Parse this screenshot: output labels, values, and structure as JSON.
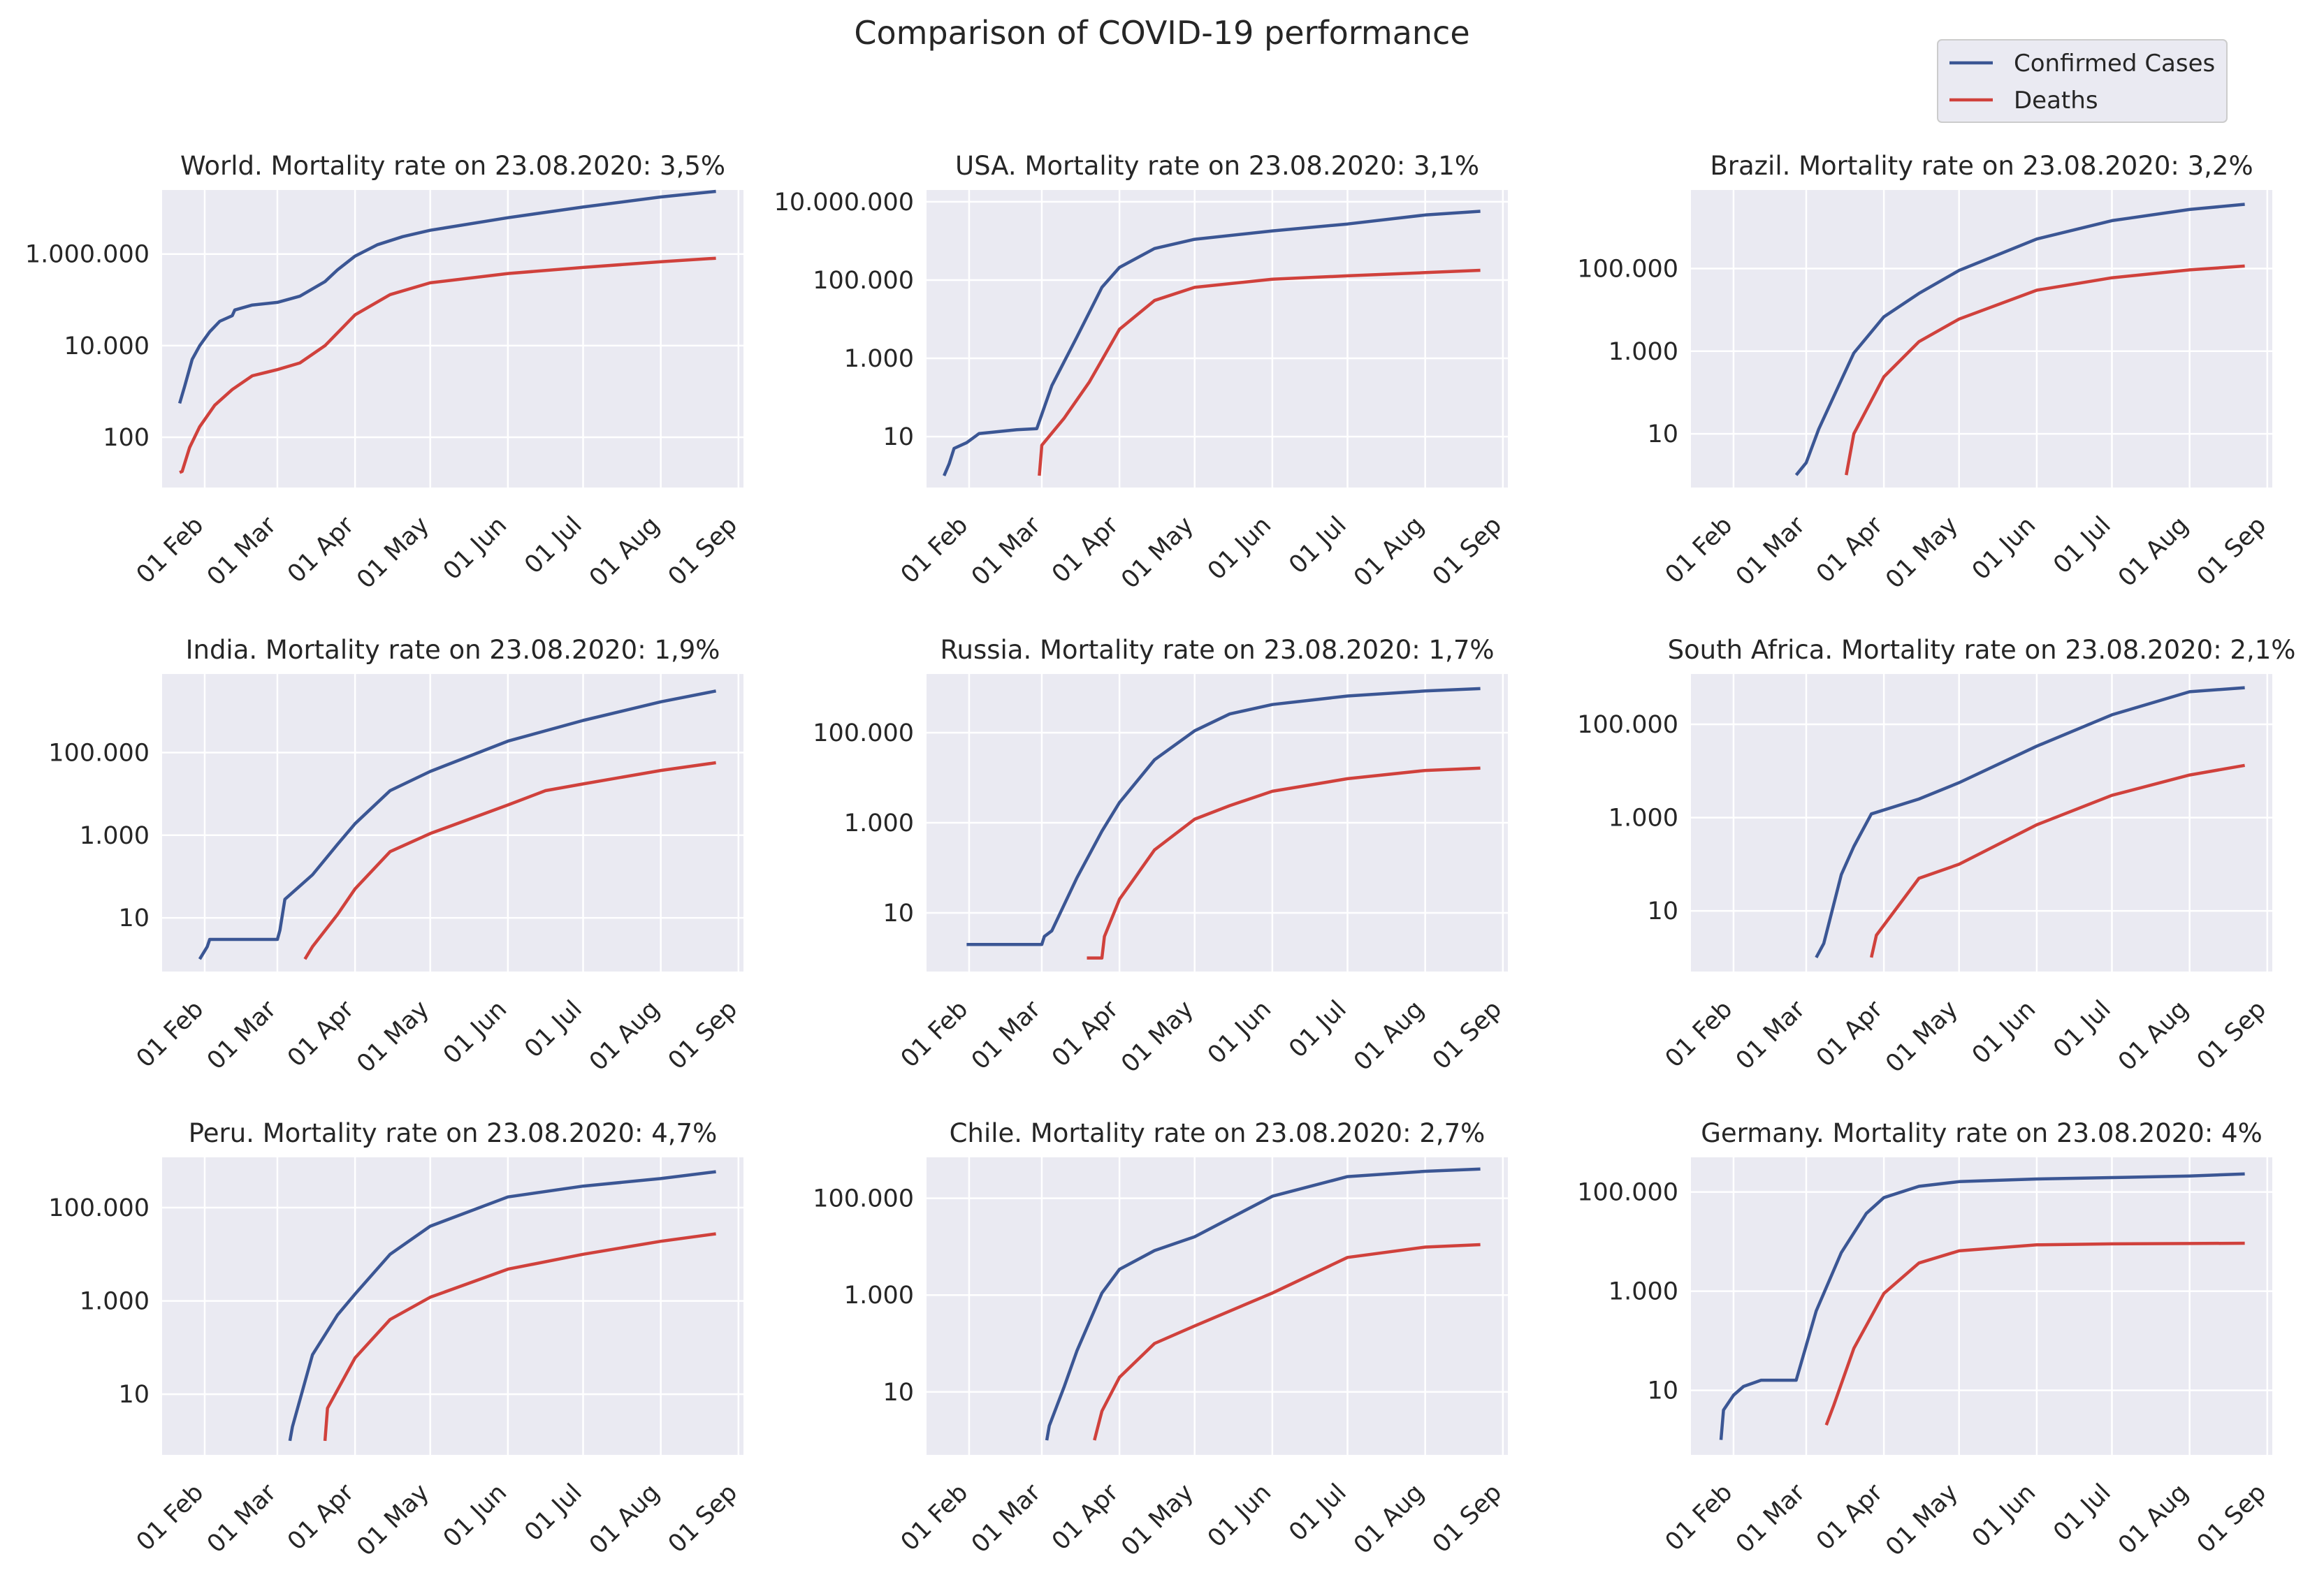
{
  "title": "Comparison of COVID-19 performance",
  "legend": {
    "position": "top-right",
    "items": [
      {
        "label": "Confirmed Cases",
        "color": "#3b5694"
      },
      {
        "label": "Deaths",
        "color": "#d0413c"
      }
    ]
  },
  "chart_data": [
    {
      "type": "line",
      "region": "World",
      "title": "World. Mortality rate on 23.08.2020: 3,5%",
      "x_ticks": [
        "01 Feb",
        "01 Mar",
        "01 Apr",
        "01 May",
        "01 Jun",
        "01 Jul",
        "01 Aug",
        "01 Sep"
      ],
      "y_scale": "log",
      "ylim": [
        8,
        25000000
      ],
      "y_ticks": [
        {
          "value": 100,
          "label": "100"
        },
        {
          "value": 10000,
          "label": "10.000"
        },
        {
          "value": 1000000,
          "label": "1.000.000"
        }
      ],
      "series": [
        {
          "name": "Confirmed Cases",
          "x": [
            "2020-01-22",
            "2020-01-24",
            "2020-01-27",
            "2020-01-30",
            "2020-02-03",
            "2020-02-07",
            "2020-02-12",
            "2020-02-13",
            "2020-02-20",
            "2020-03-01",
            "2020-03-10",
            "2020-03-20",
            "2020-03-25",
            "2020-04-01",
            "2020-04-10",
            "2020-04-20",
            "2020-05-01",
            "2020-06-01",
            "2020-07-01",
            "2020-08-01",
            "2020-08-23"
          ],
          "y": [
            550,
            1300,
            5000,
            10000,
            20000,
            34000,
            45000,
            60000,
            77000,
            88000,
            120000,
            250000,
            450000,
            900000,
            1600000,
            2400000,
            3300000,
            6200000,
            10600000,
            17600000,
            23300000
          ]
        },
        {
          "name": "Deaths",
          "x": [
            "2020-01-22",
            "2020-01-23",
            "2020-01-26",
            "2020-01-30",
            "2020-02-05",
            "2020-02-12",
            "2020-02-20",
            "2020-03-01",
            "2020-03-10",
            "2020-03-20",
            "2020-04-01",
            "2020-04-15",
            "2020-05-01",
            "2020-06-01",
            "2020-07-01",
            "2020-08-01",
            "2020-08-23"
          ],
          "y": [
            17,
            18,
            60,
            170,
            500,
            1100,
            2200,
            3000,
            4200,
            10000,
            47000,
            130000,
            235000,
            375000,
            510000,
            680000,
            810000
          ]
        }
      ]
    },
    {
      "type": "line",
      "region": "USA",
      "title": "USA. Mortality rate on 23.08.2020: 3,1%",
      "x_ticks": [
        "01 Feb",
        "01 Mar",
        "01 Apr",
        "01 May",
        "01 Jun",
        "01 Jul",
        "01 Aug",
        "01 Sep"
      ],
      "y_scale": "log",
      "ylim": [
        0.5,
        20000000
      ],
      "y_ticks": [
        {
          "value": 10,
          "label": "10"
        },
        {
          "value": 1000,
          "label": "1.000"
        },
        {
          "value": 100000,
          "label": "100.000"
        },
        {
          "value": 10000000,
          "label": "10.000.000"
        }
      ],
      "series": [
        {
          "name": "Confirmed Cases",
          "x": [
            "2020-01-22",
            "2020-01-24",
            "2020-01-26",
            "2020-01-31",
            "2020-02-05",
            "2020-02-20",
            "2020-02-28",
            "2020-03-05",
            "2020-03-15",
            "2020-03-25",
            "2020-04-01",
            "2020-04-15",
            "2020-05-01",
            "2020-06-01",
            "2020-07-01",
            "2020-08-01",
            "2020-08-23"
          ],
          "y": [
            1,
            2,
            5,
            7,
            12,
            15,
            16,
            200,
            3500,
            65000,
            210000,
            640000,
            1100000,
            1800000,
            2700000,
            4600000,
            5700000
          ]
        },
        {
          "name": "Deaths",
          "x": [
            "2020-02-29",
            "2020-03-01",
            "2020-03-10",
            "2020-03-20",
            "2020-04-01",
            "2020-04-15",
            "2020-05-01",
            "2020-06-01",
            "2020-07-01",
            "2020-08-01",
            "2020-08-23"
          ],
          "y": [
            1,
            6,
            30,
            250,
            5500,
            30000,
            65000,
            105000,
            128000,
            155000,
            177000
          ]
        }
      ]
    },
    {
      "type": "line",
      "region": "Brazil",
      "title": "Brazil. Mortality rate on 23.08.2020: 3,2%",
      "x_ticks": [
        "01 Feb",
        "01 Mar",
        "01 Apr",
        "01 May",
        "01 Jun",
        "01 Jul",
        "01 Aug",
        "01 Sep"
      ],
      "y_scale": "log",
      "ylim": [
        0.5,
        8000000
      ],
      "y_ticks": [
        {
          "value": 10,
          "label": "10"
        },
        {
          "value": 1000,
          "label": "1.000"
        },
        {
          "value": 100000,
          "label": "100.000"
        }
      ],
      "series": [
        {
          "name": "Confirmed Cases",
          "x": [
            "2020-02-26",
            "2020-03-01",
            "2020-03-06",
            "2020-03-15",
            "2020-03-20",
            "2020-04-01",
            "2020-04-15",
            "2020-05-01",
            "2020-06-01",
            "2020-07-01",
            "2020-08-01",
            "2020-08-23"
          ],
          "y": [
            1,
            2,
            13,
            200,
            900,
            6800,
            25000,
            90000,
            520000,
            1450000,
            2700000,
            3600000
          ]
        },
        {
          "name": "Deaths",
          "x": [
            "2020-03-17",
            "2020-03-20",
            "2020-04-01",
            "2020-04-15",
            "2020-05-01",
            "2020-06-01",
            "2020-07-01",
            "2020-08-01",
            "2020-08-23"
          ],
          "y": [
            1,
            10,
            240,
            1700,
            6000,
            30000,
            60000,
            93000,
            115000
          ]
        }
      ]
    },
    {
      "type": "line",
      "region": "India",
      "title": "India. Mortality rate on 23.08.2020: 1,9%",
      "x_ticks": [
        "01 Feb",
        "01 Mar",
        "01 Apr",
        "01 May",
        "01 Jun",
        "01 Jul",
        "01 Aug",
        "01 Sep"
      ],
      "y_scale": "log",
      "ylim": [
        0.5,
        8000000
      ],
      "y_ticks": [
        {
          "value": 10,
          "label": "10"
        },
        {
          "value": 1000,
          "label": "1.000"
        },
        {
          "value": 100000,
          "label": "100.000"
        }
      ],
      "series": [
        {
          "name": "Confirmed Cases",
          "x": [
            "2020-01-30",
            "2020-02-02",
            "2020-02-03",
            "2020-03-01",
            "2020-03-02",
            "2020-03-04",
            "2020-03-15",
            "2020-03-25",
            "2020-04-01",
            "2020-04-15",
            "2020-05-01",
            "2020-06-01",
            "2020-07-01",
            "2020-08-01",
            "2020-08-23"
          ],
          "y": [
            1,
            2,
            3,
            3,
            5,
            28,
            110,
            600,
            1900,
            12000,
            35000,
            190000,
            600000,
            1700000,
            3100000
          ]
        },
        {
          "name": "Deaths",
          "x": [
            "2020-03-12",
            "2020-03-15",
            "2020-03-25",
            "2020-04-01",
            "2020-04-15",
            "2020-05-01",
            "2020-06-01",
            "2020-06-16",
            "2020-07-01",
            "2020-08-01",
            "2020-08-23"
          ],
          "y": [
            1,
            2,
            12,
            50,
            400,
            1100,
            5400,
            12000,
            17400,
            37000,
            57000
          ]
        }
      ]
    },
    {
      "type": "line",
      "region": "Russia",
      "title": "Russia. Mortality rate on 23.08.2020: 1,7%",
      "x_ticks": [
        "01 Feb",
        "01 Mar",
        "01 Apr",
        "01 May",
        "01 Jun",
        "01 Jul",
        "01 Aug",
        "01 Sep"
      ],
      "y_scale": "log",
      "ylim": [
        0.5,
        2000000
      ],
      "y_ticks": [
        {
          "value": 10,
          "label": "10"
        },
        {
          "value": 1000,
          "label": "1.000"
        },
        {
          "value": 100000,
          "label": "100.000"
        }
      ],
      "series": [
        {
          "name": "Confirmed Cases",
          "x": [
            "2020-01-31",
            "2020-03-01",
            "2020-03-02",
            "2020-03-05",
            "2020-03-15",
            "2020-03-25",
            "2020-04-01",
            "2020-04-15",
            "2020-05-01",
            "2020-05-15",
            "2020-06-01",
            "2020-07-01",
            "2020-08-01",
            "2020-08-23"
          ],
          "y": [
            2,
            2,
            3,
            4,
            60,
            650,
            2800,
            25000,
            110000,
            260000,
            420000,
            650000,
            840000,
            950000
          ]
        },
        {
          "name": "Deaths",
          "x": [
            "2020-03-19",
            "2020-03-25",
            "2020-03-26",
            "2020-04-01",
            "2020-04-15",
            "2020-05-01",
            "2020-05-15",
            "2020-06-01",
            "2020-07-01",
            "2020-08-01",
            "2020-08-23"
          ],
          "y": [
            1,
            1,
            3,
            20,
            250,
            1200,
            2400,
            5000,
            9500,
            14500,
            16300
          ]
        }
      ]
    },
    {
      "type": "line",
      "region": "South Africa",
      "title": "South Africa. Mortality rate on 23.08.2020: 2,1%",
      "x_ticks": [
        "01 Feb",
        "01 Mar",
        "01 Apr",
        "01 May",
        "01 Jun",
        "01 Jul",
        "01 Aug",
        "01 Sep"
      ],
      "y_scale": "log",
      "ylim": [
        0.5,
        1200000
      ],
      "y_ticks": [
        {
          "value": 10,
          "label": "10"
        },
        {
          "value": 1000,
          "label": "1.000"
        },
        {
          "value": 100000,
          "label": "100.000"
        }
      ],
      "series": [
        {
          "name": "Confirmed Cases",
          "x": [
            "2020-03-05",
            "2020-03-08",
            "2020-03-15",
            "2020-03-20",
            "2020-03-27",
            "2020-04-15",
            "2020-05-01",
            "2020-06-01",
            "2020-07-01",
            "2020-08-01",
            "2020-08-23"
          ],
          "y": [
            1,
            2,
            60,
            240,
            1200,
            2500,
            5600,
            34000,
            160000,
            500000,
            610000
          ]
        },
        {
          "name": "Deaths",
          "x": [
            "2020-03-27",
            "2020-03-29",
            "2020-04-15",
            "2020-05-01",
            "2020-06-01",
            "2020-07-01",
            "2020-08-01",
            "2020-08-23"
          ],
          "y": [
            1,
            3,
            50,
            100,
            700,
            3000,
            8200,
            13200
          ]
        }
      ]
    },
    {
      "type": "line",
      "region": "Peru",
      "title": "Peru. Mortality rate on 23.08.2020: 4,7%",
      "x_ticks": [
        "01 Feb",
        "01 Mar",
        "01 Apr",
        "01 May",
        "01 Jun",
        "01 Jul",
        "01 Aug",
        "01 Sep"
      ],
      "y_scale": "log",
      "ylim": [
        0.5,
        1200000
      ],
      "y_ticks": [
        {
          "value": 10,
          "label": "10"
        },
        {
          "value": 1000,
          "label": "1.000"
        },
        {
          "value": 100000,
          "label": "100.000"
        }
      ],
      "series": [
        {
          "name": "Confirmed Cases",
          "x": [
            "2020-03-06",
            "2020-03-07",
            "2020-03-15",
            "2020-03-25",
            "2020-04-01",
            "2020-04-15",
            "2020-05-01",
            "2020-06-01",
            "2020-07-01",
            "2020-08-01",
            "2020-08-23"
          ],
          "y": [
            1,
            2,
            70,
            500,
            1400,
            10000,
            40000,
            170000,
            290000,
            420000,
            590000
          ]
        },
        {
          "name": "Deaths",
          "x": [
            "2020-03-20",
            "2020-03-21",
            "2020-04-01",
            "2020-04-15",
            "2020-05-01",
            "2020-06-01",
            "2020-07-01",
            "2020-08-01",
            "2020-08-23"
          ],
          "y": [
            1,
            5,
            60,
            400,
            1200,
            4800,
            10000,
            19000,
            27500
          ]
        }
      ]
    },
    {
      "type": "line",
      "region": "Chile",
      "title": "Chile. Mortality rate on 23.08.2020: 2,7%",
      "x_ticks": [
        "01 Feb",
        "01 Mar",
        "01 Apr",
        "01 May",
        "01 Jun",
        "01 Jul",
        "01 Aug",
        "01 Sep"
      ],
      "y_scale": "log",
      "ylim": [
        0.5,
        700000
      ],
      "y_ticks": [
        {
          "value": 10,
          "label": "10"
        },
        {
          "value": 1000,
          "label": "1.000"
        },
        {
          "value": 100000,
          "label": "100.000"
        }
      ],
      "series": [
        {
          "name": "Confirmed Cases",
          "x": [
            "2020-03-03",
            "2020-03-04",
            "2020-03-10",
            "2020-03-15",
            "2020-03-25",
            "2020-04-01",
            "2020-04-15",
            "2020-05-01",
            "2020-06-01",
            "2020-07-01",
            "2020-08-01",
            "2020-08-23"
          ],
          "y": [
            1,
            2,
            13,
            70,
            1100,
            3400,
            8300,
            16000,
            110000,
            280000,
            360000,
            400000
          ]
        },
        {
          "name": "Deaths",
          "x": [
            "2020-03-22",
            "2020-03-25",
            "2020-04-01",
            "2020-04-15",
            "2020-05-01",
            "2020-06-01",
            "2020-07-01",
            "2020-08-01",
            "2020-08-23"
          ],
          "y": [
            1,
            4,
            20,
            100,
            230,
            1100,
            6000,
            9800,
            11000
          ]
        }
      ]
    },
    {
      "type": "line",
      "region": "Germany",
      "title": "Germany. Mortality rate on 23.08.2020: 4%",
      "x_ticks": [
        "01 Feb",
        "01 Mar",
        "01 Apr",
        "01 May",
        "01 Jun",
        "01 Jul",
        "01 Aug",
        "01 Sep"
      ],
      "y_scale": "log",
      "ylim": [
        0.5,
        500000
      ],
      "y_ticks": [
        {
          "value": 10,
          "label": "10"
        },
        {
          "value": 1000,
          "label": "1.000"
        },
        {
          "value": 100000,
          "label": "100.000"
        }
      ],
      "series": [
        {
          "name": "Confirmed Cases",
          "x": [
            "2020-01-27",
            "2020-01-28",
            "2020-02-01",
            "2020-02-05",
            "2020-02-12",
            "2020-02-26",
            "2020-03-05",
            "2020-03-15",
            "2020-03-25",
            "2020-04-01",
            "2020-04-15",
            "2020-05-01",
            "2020-06-01",
            "2020-07-01",
            "2020-08-01",
            "2020-08-23"
          ],
          "y": [
            1,
            4,
            8,
            12,
            16,
            16,
            400,
            6000,
            37000,
            77000,
            130000,
            162000,
            183000,
            195000,
            210000,
            232000
          ]
        },
        {
          "name": "Deaths",
          "x": [
            "2020-03-09",
            "2020-03-12",
            "2020-03-20",
            "2020-04-01",
            "2020-04-15",
            "2020-05-01",
            "2020-06-01",
            "2020-07-01",
            "2020-08-01",
            "2020-08-23"
          ],
          "y": [
            2,
            5,
            70,
            900,
            3700,
            6500,
            8600,
            9000,
            9150,
            9270
          ]
        }
      ]
    }
  ]
}
